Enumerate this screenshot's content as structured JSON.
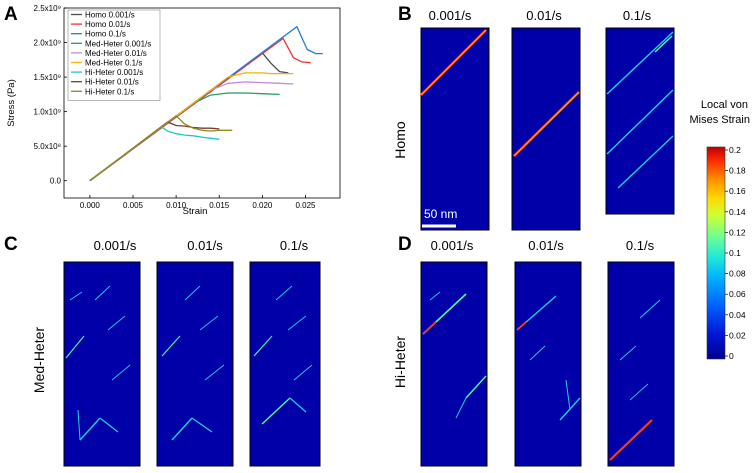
{
  "panels": {
    "A": "A",
    "B": "B",
    "C": "C",
    "D": "D"
  },
  "chart_data": {
    "type": "line",
    "title": "",
    "xlabel": "Strain",
    "ylabel": "Stress (Pa)",
    "xlim": [
      -0.003,
      0.029
    ],
    "ylim": [
      -0.25,
      2.5
    ],
    "xticks": [
      0.0,
      0.005,
      0.01,
      0.015,
      0.02,
      0.025
    ],
    "xtick_labels": [
      "0.000",
      "0.005",
      "0.010",
      "0.015",
      "0.020",
      "0.025"
    ],
    "yticks": [
      0.0,
      0.5,
      1.0,
      1.5,
      2.0,
      2.5
    ],
    "ytick_labels": [
      "0.0",
      "5.0x10⁸",
      "1.0x10⁹",
      "1.5x10⁹",
      "2.0x10⁹",
      "2.5x10⁹"
    ],
    "legend_position": "top-left",
    "series": [
      {
        "name": "Homo 0.001/s",
        "color": "#4d4d4d",
        "x": [
          0,
          0.02,
          0.021,
          0.022,
          0.023
        ],
        "y": [
          0,
          1.85,
          1.7,
          1.58,
          1.56
        ]
      },
      {
        "name": "Homo 0.01/s",
        "color": "#ff2a2a",
        "x": [
          0,
          0.0224,
          0.0236,
          0.0246,
          0.0256
        ],
        "y": [
          0,
          2.06,
          1.78,
          1.72,
          1.71
        ]
      },
      {
        "name": "Homo 0.1/s",
        "color": "#1f7fe0",
        "x": [
          0,
          0.024,
          0.0252,
          0.0262,
          0.027
        ],
        "y": [
          0,
          2.23,
          1.9,
          1.84,
          1.84
        ]
      },
      {
        "name": "Med-Heter 0.001/s",
        "color": "#1e9e6a",
        "x": [
          0,
          0.012,
          0.014,
          0.016,
          0.018,
          0.02,
          0.022
        ],
        "y": [
          0,
          1.12,
          1.24,
          1.27,
          1.27,
          1.26,
          1.25
        ]
      },
      {
        "name": "Med-Heter 0.01/s",
        "color": "#c28ae0",
        "x": [
          0,
          0.014,
          0.016,
          0.018,
          0.02,
          0.022,
          0.0236
        ],
        "y": [
          0,
          1.31,
          1.41,
          1.43,
          1.42,
          1.41,
          1.4
        ]
      },
      {
        "name": "Med-Heter 0.1/s",
        "color": "#f0b400",
        "x": [
          0,
          0.016,
          0.018,
          0.02,
          0.021,
          0.0236
        ],
        "y": [
          0,
          1.5,
          1.56,
          1.56,
          1.55,
          1.55
        ]
      },
      {
        "name": "Hi-Heter 0.001/s",
        "color": "#1ec9c9",
        "x": [
          0,
          0.0083,
          0.009,
          0.01,
          0.011,
          0.012,
          0.013,
          0.015
        ],
        "y": [
          0,
          0.78,
          0.72,
          0.68,
          0.66,
          0.65,
          0.63,
          0.6
        ]
      },
      {
        "name": "Hi-Heter 0.01/s",
        "color": "#7a3b2e",
        "x": [
          0,
          0.009,
          0.01,
          0.011,
          0.012,
          0.013,
          0.014,
          0.015
        ],
        "y": [
          0,
          0.85,
          0.8,
          0.79,
          0.77,
          0.76,
          0.76,
          0.75
        ]
      },
      {
        "name": "Hi-Heter 0.1/s",
        "color": "#8c8c1a",
        "x": [
          0,
          0.01,
          0.011,
          0.012,
          0.013,
          0.014,
          0.015,
          0.0165
        ],
        "y": [
          0,
          0.94,
          0.82,
          0.76,
          0.73,
          0.72,
          0.73,
          0.73
        ]
      }
    ]
  },
  "rates": {
    "B": [
      "0.001/s",
      "0.01/s",
      "0.1/s"
    ],
    "C": [
      "0.001/s",
      "0.01/s",
      "0.1/s"
    ],
    "D": [
      "0.001/s",
      "0.01/s",
      "0.1/s"
    ]
  },
  "row_labels": {
    "homo": "Homo",
    "med": "Med-Heter",
    "hi": "Hi-Heter"
  },
  "scale_bar": "50 nm",
  "colorbar": {
    "title_line1": "Local von",
    "title_line2": "Mises Strain",
    "ticks": [
      "0.2",
      "0.18",
      "0.16",
      "0.14",
      "0.12",
      "0.1",
      "0.08",
      "0.06",
      "0.04",
      "0.02",
      "0"
    ],
    "colors": [
      "#00008f",
      "#0010c8",
      "#0040ff",
      "#0080ff",
      "#00b8ff",
      "#20e0e0",
      "#60ff9f",
      "#a0ff60",
      "#e0ff20",
      "#ffd000",
      "#ff9000",
      "#ff5000",
      "#e01000",
      "#b00000"
    ]
  },
  "colors": {
    "snapshot_bg": "#0000a8",
    "band_low": "#1ed2dc",
    "band_mid": "#50ff9a",
    "band_high": "#ff3a18"
  }
}
